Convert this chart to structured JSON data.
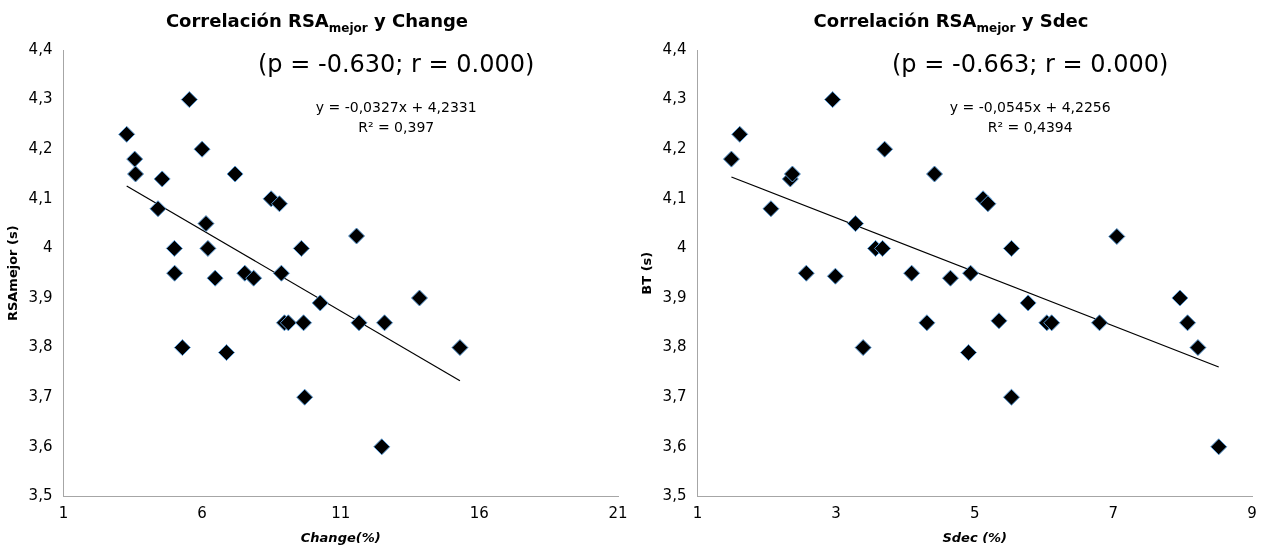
{
  "chart_data": [
    {
      "type": "scatter",
      "title": "Correlación RSA$_{mejor}$ y Change",
      "xlabel": "Change(%)",
      "ylabel": "RSAmejor (s)",
      "annotations": [
        "(p = -0.630; r = 0.000)",
        "y = -0,0327x + 4,2331",
        "R² = 0,397"
      ],
      "xlim": [
        1,
        21
      ],
      "xticks": [
        1,
        6,
        11,
        16,
        21
      ],
      "ylim": [
        3.5,
        4.4
      ],
      "yticks": [
        {
          "value": 3.5,
          "label": "3,5"
        },
        {
          "value": 3.6,
          "label": "3,6"
        },
        {
          "value": 3.7,
          "label": "3,7"
        },
        {
          "value": 3.8,
          "label": "3,8"
        },
        {
          "value": 3.9,
          "label": "3,9"
        },
        4,
        {
          "value": 4.1,
          "label": "4,1"
        },
        {
          "value": 4.2,
          "label": "4,2"
        },
        {
          "value": 4.3,
          "label": "4,3"
        },
        {
          "value": 4.4,
          "label": "4,4"
        }
      ],
      "grid": false,
      "legend": false,
      "series": [
        {
          "type": "scatter",
          "color": "#000000",
          "marker": "diamond",
          "x": [
            3.28,
            3.57,
            3.6,
            4.56,
            5.54,
            6.0,
            7.19,
            4.41,
            6.14,
            8.49,
            8.79,
            5.0,
            6.21,
            9.58,
            11.57,
            5.01,
            6.47,
            7.54,
            7.86,
            8.86,
            10.26,
            13.84,
            8.97,
            9.11,
            9.66,
            11.66,
            12.58,
            5.29,
            6.88,
            15.3,
            9.7,
            12.48
          ],
          "values": [
            4.23,
            4.18,
            4.15,
            4.14,
            4.3,
            4.2,
            4.15,
            4.08,
            4.05,
            4.1,
            4.09,
            4.0,
            4.0,
            4.0,
            4.025,
            3.95,
            3.94,
            3.95,
            3.94,
            3.95,
            3.89,
            3.9,
            3.85,
            3.85,
            3.85,
            3.85,
            3.85,
            3.8,
            3.79,
            3.8,
            3.7,
            3.6
          ]
        },
        {
          "type": "line",
          "color": "#000000",
          "marker": "none",
          "x": [
            3.28,
            15.3
          ],
          "values": [
            4.126,
            3.733
          ]
        }
      ]
    },
    {
      "type": "scatter",
      "title": "Correlación RSA$_{mejor}$ y Sdec",
      "xlabel": "Sdec (%)",
      "ylabel": "BT (s)",
      "annotations": [
        "(p = -0.663; r = 0.000)",
        "y = -0,0545x + 4,2256",
        "R² = 0,4394"
      ],
      "xlim": [
        1,
        9
      ],
      "xticks": [
        1,
        3,
        5,
        7,
        9
      ],
      "ylim": [
        3.5,
        4.4
      ],
      "yticks": [
        {
          "value": 3.5,
          "label": "3,5"
        },
        {
          "value": 3.6,
          "label": "3,6"
        },
        {
          "value": 3.7,
          "label": "3,7"
        },
        {
          "value": 3.8,
          "label": "3,8"
        },
        {
          "value": 3.9,
          "label": "3,9"
        },
        4,
        {
          "value": 4.1,
          "label": "4,1"
        },
        {
          "value": 4.2,
          "label": "4,2"
        },
        {
          "value": 4.3,
          "label": "4,3"
        },
        {
          "value": 4.4,
          "label": "4,4"
        }
      ],
      "grid": false,
      "legend": false,
      "series": [
        {
          "type": "scatter",
          "color": "#000000",
          "marker": "diamond",
          "x": [
            1.49,
            1.61,
            2.95,
            3.7,
            2.34,
            2.37,
            2.06,
            4.42,
            5.12,
            5.19,
            3.28,
            3.57,
            3.67,
            5.53,
            7.05,
            2.57,
            2.99,
            4.09,
            4.65,
            4.94,
            5.77,
            7.96,
            4.31,
            5.35,
            6.04,
            6.11,
            6.8,
            8.07,
            3.39,
            4.91,
            8.22,
            5.53,
            8.52
          ],
          "values": [
            4.18,
            4.23,
            4.3,
            4.2,
            4.14,
            4.15,
            4.08,
            4.15,
            4.1,
            4.09,
            4.05,
            4.0,
            4.0,
            4.0,
            4.024,
            3.95,
            3.944,
            3.95,
            3.94,
            3.95,
            3.89,
            3.9,
            3.85,
            3.854,
            3.85,
            3.85,
            3.85,
            3.85,
            3.8,
            3.79,
            3.8,
            3.7,
            3.6
          ]
        },
        {
          "type": "line",
          "color": "#000000",
          "marker": "none",
          "x": [
            1.49,
            8.52
          ],
          "values": [
            4.144,
            3.761
          ]
        }
      ]
    }
  ]
}
